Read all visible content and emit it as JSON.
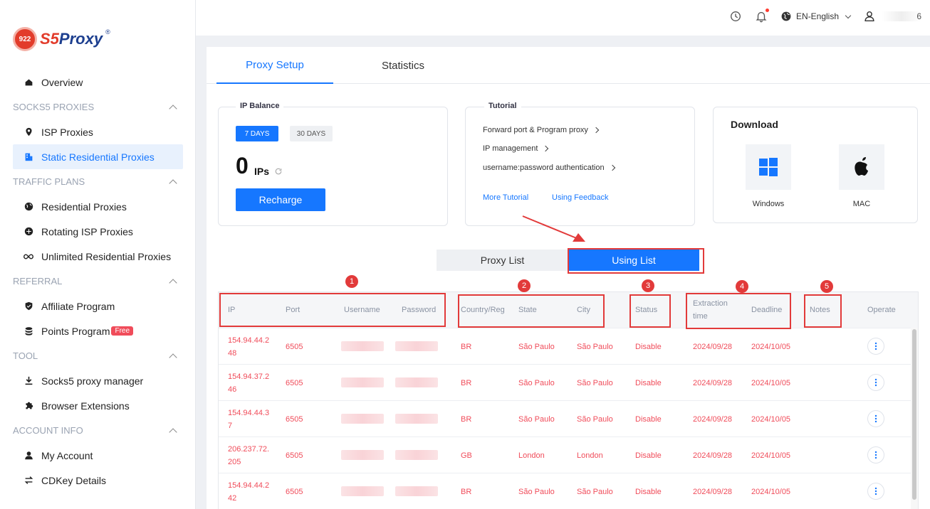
{
  "brand": {
    "badge": "922",
    "name_part1": "S5",
    "name_part2": "Proxy",
    "reg": "®"
  },
  "sidebar": {
    "items": [
      {
        "type": "item",
        "label": "Overview",
        "icon": "home-icon"
      },
      {
        "type": "section",
        "label": "SOCKS5 PROXIES"
      },
      {
        "type": "item",
        "label": "ISP Proxies",
        "icon": "location-pin-icon"
      },
      {
        "type": "item",
        "label": "Static Residential Proxies",
        "icon": "building-icon",
        "active": true
      },
      {
        "type": "section",
        "label": "TRAFFIC PLANS"
      },
      {
        "type": "item",
        "label": "Residential Proxies",
        "icon": "globe-icon"
      },
      {
        "type": "item",
        "label": "Rotating ISP Proxies",
        "icon": "rotate-globe-icon"
      },
      {
        "type": "item",
        "label": "Unlimited Residential Proxies",
        "icon": "infinity-icon"
      },
      {
        "type": "section",
        "label": "REFERRAL"
      },
      {
        "type": "item",
        "label": "Affiliate Program",
        "icon": "shield-icon"
      },
      {
        "type": "item",
        "label": "Points Program",
        "icon": "coins-icon",
        "badge": "Free"
      },
      {
        "type": "section",
        "label": "TOOL"
      },
      {
        "type": "item",
        "label": "Socks5 proxy manager",
        "icon": "download-icon"
      },
      {
        "type": "item",
        "label": "Browser Extensions",
        "icon": "puzzle-icon"
      },
      {
        "type": "section",
        "label": "ACCOUNT INFO"
      },
      {
        "type": "item",
        "label": "My Account",
        "icon": "user-icon"
      },
      {
        "type": "item",
        "label": "CDKey Details",
        "icon": "swap-icon"
      }
    ]
  },
  "topbar": {
    "language": "EN-English",
    "user_visible": "6",
    "icons": [
      "history-icon",
      "bell-icon",
      "globe-icon",
      "user-icon"
    ]
  },
  "tabs": [
    {
      "label": "Proxy Setup",
      "active": true
    },
    {
      "label": "Statistics",
      "active": false
    }
  ],
  "ip_balance": {
    "title": "IP Balance",
    "day_options": [
      "7 DAYS",
      "30 DAYS"
    ],
    "selected": "7 DAYS",
    "count": "0",
    "unit": "IPs",
    "recharge_label": "Recharge"
  },
  "tutorial": {
    "title": "Tutorial",
    "links": [
      "Forward port & Program proxy",
      "IP management",
      "username:password authentication"
    ],
    "more_label": "More Tutorial",
    "feedback_label": "Using Feedback"
  },
  "download": {
    "title": "Download",
    "windows_label": "Windows",
    "mac_label": "MAC"
  },
  "list_toggle": {
    "proxy_list": "Proxy List",
    "using_list": "Using List",
    "selected": "Using List"
  },
  "annotations": [
    "1",
    "2",
    "3",
    "4",
    "5"
  ],
  "colors": {
    "accent": "#1677ff",
    "row_text": "#f04c5a",
    "annotation": "#e23a3a"
  },
  "table": {
    "headers": {
      "ip": "IP",
      "port": "Port",
      "username": "Username",
      "password": "Password",
      "country": "Country/Reg",
      "state": "State",
      "city": "City",
      "status": "Status",
      "extraction": "Extraction time",
      "deadline": "Deadline",
      "notes": "Notes",
      "operate": "Operate"
    },
    "rows": [
      {
        "ip": "154.94.44.248",
        "port": "6505",
        "country": "BR",
        "state": "São Paulo",
        "city": "São Paulo",
        "status": "Disable",
        "extraction": "2024/09/28",
        "deadline": "2024/10/05"
      },
      {
        "ip": "154.94.37.246",
        "port": "6505",
        "country": "BR",
        "state": "São Paulo",
        "city": "São Paulo",
        "status": "Disable",
        "extraction": "2024/09/28",
        "deadline": "2024/10/05"
      },
      {
        "ip": "154.94.44.37",
        "port": "6505",
        "country": "BR",
        "state": "São Paulo",
        "city": "São Paulo",
        "status": "Disable",
        "extraction": "2024/09/28",
        "deadline": "2024/10/05"
      },
      {
        "ip": "206.237.72.205",
        "port": "6505",
        "country": "GB",
        "state": "London",
        "city": "London",
        "status": "Disable",
        "extraction": "2024/09/28",
        "deadline": "2024/10/05"
      },
      {
        "ip": "154.94.44.242",
        "port": "6505",
        "country": "BR",
        "state": "São Paulo",
        "city": "São Paulo",
        "status": "Disable",
        "extraction": "2024/09/28",
        "deadline": "2024/10/05"
      }
    ]
  }
}
